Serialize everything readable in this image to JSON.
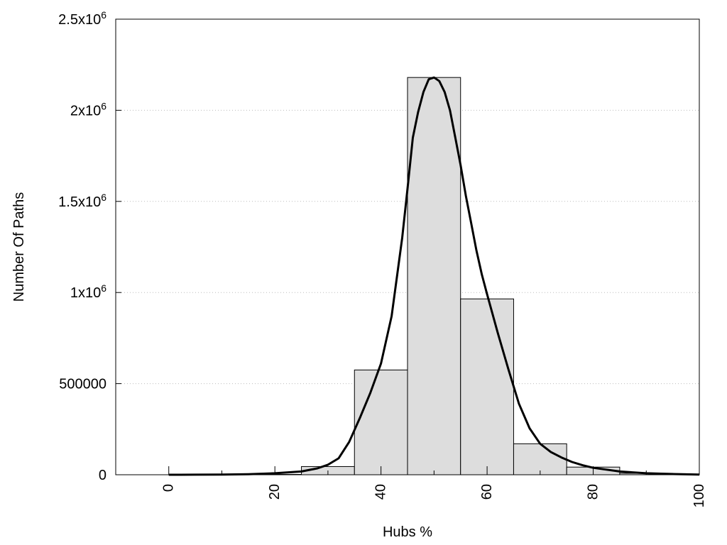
{
  "chart_data": {
    "type": "bar",
    "title": "",
    "xlabel": "Hubs %",
    "ylabel": "Number Of Paths",
    "xlim": [
      -10,
      100
    ],
    "ylim": [
      0,
      2500000
    ],
    "grid": "horizontal dotted",
    "x_ticks": [
      0,
      20,
      40,
      60,
      80,
      100
    ],
    "x_tick_labels": [
      "0",
      "20",
      "40",
      "60",
      "80",
      "100"
    ],
    "y_ticks": [
      0,
      500000,
      1000000,
      1500000,
      2000000,
      2500000
    ],
    "y_tick_labels": [
      {
        "base": "0",
        "exp": ""
      },
      {
        "base": "500000",
        "exp": ""
      },
      {
        "base": "1x10",
        "exp": "6"
      },
      {
        "base": "1.5x10",
        "exp": "6"
      },
      {
        "base": "2x10",
        "exp": "6"
      },
      {
        "base": "2.5x10",
        "exp": "6"
      }
    ],
    "bin_width": 10,
    "bars": [
      {
        "x": 0,
        "value": 0
      },
      {
        "x": 10,
        "value": 0
      },
      {
        "x": 20,
        "value": 2000
      },
      {
        "x": 30,
        "value": 45000
      },
      {
        "x": 40,
        "value": 575000
      },
      {
        "x": 50,
        "value": 2180000
      },
      {
        "x": 60,
        "value": 965000
      },
      {
        "x": 70,
        "value": 170000
      },
      {
        "x": 80,
        "value": 42000
      },
      {
        "x": 90,
        "value": 8000
      }
    ],
    "curve": {
      "x": [
        0,
        5,
        10,
        15,
        20,
        25,
        28,
        30,
        32,
        34,
        36,
        38,
        40,
        42,
        44,
        45,
        46,
        47,
        48,
        49,
        50,
        51,
        52,
        53,
        54,
        55,
        56,
        57,
        58,
        59,
        60,
        62,
        64,
        66,
        68,
        70,
        72,
        74,
        76,
        78,
        80,
        85,
        90,
        95,
        100
      ],
      "y": [
        0,
        500,
        1000,
        3000,
        8000,
        18000,
        35000,
        55000,
        90000,
        180000,
        310000,
        450000,
        610000,
        870000,
        1300000,
        1570000,
        1850000,
        1990000,
        2100000,
        2170000,
        2180000,
        2160000,
        2100000,
        2000000,
        1850000,
        1700000,
        1530000,
        1380000,
        1230000,
        1100000,
        990000,
        780000,
        580000,
        390000,
        255000,
        170000,
        125000,
        95000,
        70000,
        52000,
        38000,
        18000,
        8000,
        4000,
        1000
      ]
    },
    "colors": {
      "bar_fill": "#dddddd",
      "bar_stroke": "#000000",
      "curve": "#000000",
      "grid": "#bbbbbb",
      "frame": "#000000"
    }
  }
}
